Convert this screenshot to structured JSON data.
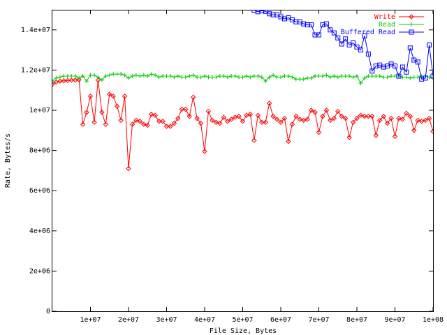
{
  "chart_data": {
    "type": "line",
    "xlabel": "File Size, Bytes",
    "ylabel": "Rate, Bytes/s",
    "xlim": [
      0,
      100000000
    ],
    "ylim": [
      0,
      15000000
    ],
    "xticks": [
      {
        "value": 10000000,
        "label": "1e+07"
      },
      {
        "value": 20000000,
        "label": "2e+07"
      },
      {
        "value": 30000000,
        "label": "3e+07"
      },
      {
        "value": 40000000,
        "label": "4e+07"
      },
      {
        "value": 50000000,
        "label": "5e+07"
      },
      {
        "value": 60000000,
        "label": "6e+07"
      },
      {
        "value": 70000000,
        "label": "7e+07"
      },
      {
        "value": 80000000,
        "label": "8e+07"
      },
      {
        "value": 90000000,
        "label": "9e+07"
      },
      {
        "value": 100000000,
        "label": "1e+08"
      }
    ],
    "yticks": [
      {
        "value": 0,
        "label": "0"
      },
      {
        "value": 2000000,
        "label": "2e+06"
      },
      {
        "value": 4000000,
        "label": "4e+06"
      },
      {
        "value": 6000000,
        "label": "6e+06"
      },
      {
        "value": 8000000,
        "label": "8e+06"
      },
      {
        "value": 10000000,
        "label": "1e+07"
      },
      {
        "value": 12000000,
        "label": "1.2e+07"
      },
      {
        "value": 14000000,
        "label": "1.4e+07"
      }
    ],
    "grid": false,
    "legend_position": "top-right",
    "series": [
      {
        "name": "Write",
        "color": "#ff0000",
        "marker": "diamond",
        "x": [
          0,
          1000000,
          2000000,
          3000000,
          4000000,
          5000000,
          6000000,
          7000000,
          8000000,
          9000000,
          10000000,
          11000000,
          12000000,
          13000000,
          14000000,
          15000000,
          16000000,
          17000000,
          18000000,
          19000000,
          20000000,
          21000000,
          22000000,
          23000000,
          24000000,
          25000000,
          26000000,
          27000000,
          28000000,
          29000000,
          30000000,
          31000000,
          32000000,
          33000000,
          34000000,
          35000000,
          36000000,
          37000000,
          38000000,
          39000000,
          40000000,
          41000000,
          42000000,
          43000000,
          44000000,
          45000000,
          46000000,
          47000000,
          48000000,
          49000000,
          50000000,
          51000000,
          52000000,
          53000000,
          54000000,
          55000000,
          56000000,
          57000000,
          58000000,
          59000000,
          60000000,
          61000000,
          62000000,
          63000000,
          64000000,
          65000000,
          66000000,
          67000000,
          68000000,
          69000000,
          70000000,
          71000000,
          72000000,
          73000000,
          74000000,
          75000000,
          76000000,
          77000000,
          78000000,
          79000000,
          80000000,
          81000000,
          82000000,
          83000000,
          84000000,
          85000000,
          86000000,
          87000000,
          88000000,
          89000000,
          90000000,
          91000000,
          92000000,
          93000000,
          94000000,
          95000000,
          96000000,
          97000000,
          98000000,
          99000000,
          100000000
        ],
        "y": [
          11300000,
          11400000,
          11450000,
          11470000,
          11480000,
          11500000,
          11500000,
          11520000,
          9300000,
          9900000,
          10700000,
          9400000,
          11500000,
          9900000,
          9300000,
          10800000,
          10700000,
          10200000,
          9500000,
          10700000,
          7100000,
          9300000,
          9500000,
          9450000,
          9300000,
          9250000,
          9800000,
          9750000,
          9450000,
          9450000,
          9200000,
          9200000,
          9350000,
          9600000,
          10050000,
          10050000,
          9700000,
          10650000,
          9600000,
          9350000,
          7950000,
          9950000,
          9500000,
          9400000,
          9350000,
          9650000,
          9450000,
          9550000,
          9650000,
          9700000,
          9450000,
          9750000,
          9800000,
          8500000,
          9750000,
          9400000,
          9400000,
          10350000,
          9700000,
          9550000,
          9400000,
          9600000,
          8450000,
          9300000,
          9700000,
          9550000,
          9500000,
          9550000,
          10000000,
          9900000,
          8900000,
          9700000,
          10000000,
          9500000,
          9600000,
          9950000,
          9700000,
          9600000,
          8650000,
          9400000,
          9600000,
          9750000,
          9700000,
          9700000,
          9700000,
          8750000,
          9500000,
          9700000,
          9350000,
          9600000,
          8700000,
          9600000,
          9550000,
          9850000,
          9700000,
          9000000,
          9500000,
          9450000,
          9500000,
          9600000,
          8950000
        ]
      },
      {
        "name": "Read",
        "color": "#00cc00",
        "marker": "plus",
        "x": [
          0,
          1000000,
          2000000,
          3000000,
          4000000,
          5000000,
          6000000,
          7000000,
          8000000,
          9000000,
          10000000,
          11000000,
          12000000,
          13000000,
          14000000,
          15000000,
          16000000,
          17000000,
          18000000,
          19000000,
          20000000,
          21000000,
          22000000,
          23000000,
          24000000,
          25000000,
          26000000,
          27000000,
          28000000,
          29000000,
          30000000,
          31000000,
          32000000,
          33000000,
          34000000,
          35000000,
          36000000,
          37000000,
          38000000,
          39000000,
          40000000,
          41000000,
          42000000,
          43000000,
          44000000,
          45000000,
          46000000,
          47000000,
          48000000,
          49000000,
          50000000,
          51000000,
          52000000,
          53000000,
          54000000,
          55000000,
          56000000,
          57000000,
          58000000,
          59000000,
          60000000,
          61000000,
          62000000,
          63000000,
          64000000,
          65000000,
          66000000,
          67000000,
          68000000,
          69000000,
          70000000,
          71000000,
          72000000,
          73000000,
          74000000,
          75000000,
          76000000,
          77000000,
          78000000,
          79000000,
          80000000,
          81000000,
          82000000,
          83000000,
          84000000,
          85000000,
          86000000,
          87000000,
          88000000,
          89000000,
          90000000,
          91000000,
          92000000,
          93000000,
          94000000,
          95000000,
          96000000,
          97000000,
          98000000,
          99000000,
          100000000
        ],
        "y": [
          11450000,
          11600000,
          11650000,
          11700000,
          11700000,
          11700000,
          11700000,
          11600000,
          11700000,
          11450000,
          11750000,
          11750000,
          11650000,
          11500000,
          11700000,
          11750000,
          11800000,
          11800000,
          11800000,
          11750000,
          11600000,
          11700000,
          11750000,
          11700000,
          11750000,
          11700000,
          11800000,
          11750000,
          11650000,
          11700000,
          11700000,
          11700000,
          11650000,
          11700000,
          11650000,
          11650000,
          11700000,
          11750000,
          11650000,
          11650000,
          11700000,
          11650000,
          11650000,
          11650000,
          11700000,
          11700000,
          11650000,
          11700000,
          11700000,
          11650000,
          11650000,
          11700000,
          11650000,
          11700000,
          11700000,
          11650000,
          11450000,
          11650000,
          11750000,
          11650000,
          11650000,
          11700000,
          11700000,
          11650000,
          11550000,
          11550000,
          11550000,
          11600000,
          11600000,
          11700000,
          11700000,
          11700000,
          11750000,
          11650000,
          11700000,
          11650000,
          11700000,
          11700000,
          11700000,
          11650000,
          11700000,
          11350000,
          11600000,
          11700000,
          11700000,
          11700000,
          11700000,
          11650000,
          11650000,
          11700000,
          11700000,
          11700000,
          11650000,
          11650000,
          11600000,
          11650000,
          11650000,
          11700000,
          11700000,
          11650000,
          11600000
        ]
      },
      {
        "name": "Buffered Read",
        "color": "#0000ff",
        "marker": "square",
        "x": [
          53000000,
          54000000,
          55000000,
          56000000,
          57000000,
          58000000,
          59000000,
          60000000,
          61000000,
          62000000,
          63000000,
          64000000,
          65000000,
          66000000,
          67000000,
          68000000,
          69000000,
          70000000,
          71000000,
          72000000,
          73000000,
          74000000,
          75000000,
          76000000,
          77000000,
          78000000,
          79000000,
          80000000,
          81000000,
          82000000,
          83000000,
          84000000,
          85000000,
          86000000,
          87000000,
          88000000,
          89000000,
          90000000,
          91000000,
          92000000,
          93000000,
          94000000,
          95000000,
          96000000,
          97000000,
          98000000,
          99000000,
          100000000
        ],
        "y": [
          14980000,
          14900000,
          14950000,
          14920000,
          14800000,
          14750000,
          14750000,
          14650000,
          14550000,
          14600000,
          14500000,
          14400000,
          14400000,
          14300000,
          14250000,
          14250000,
          13750000,
          13750000,
          14250000,
          14300000,
          14000000,
          13850000,
          13600000,
          13300000,
          13550000,
          13250000,
          13350000,
          13150000,
          13000000,
          13700000,
          12800000,
          11950000,
          12200000,
          12250000,
          12150000,
          12200000,
          12300000,
          12200000,
          11700000,
          12150000,
          11900000,
          13100000,
          12500000,
          12400000,
          11550000,
          11600000,
          13250000,
          11700000
        ]
      }
    ]
  }
}
